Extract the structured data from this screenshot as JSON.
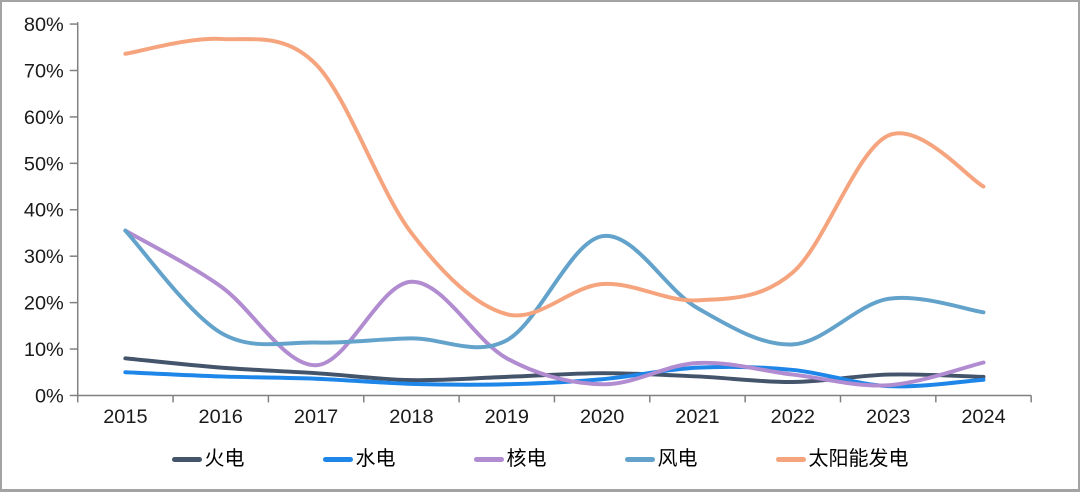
{
  "figure": {
    "background": "#ffffff",
    "border_color": "#a3a3a3",
    "axis_line_color": "#808080",
    "tick_label_color": "#1a1a1a"
  },
  "axes": {
    "y": {
      "tick_labels": [
        "0%",
        "10%",
        "20%",
        "30%",
        "40%",
        "50%",
        "60%",
        "70%",
        "80%"
      ]
    },
    "x": {
      "tick_labels": [
        "2015",
        "2016",
        "2017",
        "2018",
        "2019",
        "2020",
        "2021",
        "2022",
        "2023",
        "2024"
      ]
    }
  },
  "legend": {
    "items": [
      {
        "label": "火电",
        "color": "#44546A"
      },
      {
        "label": "水电",
        "color": "#1D86E8"
      },
      {
        "label": "核电",
        "color": "#B18CD0"
      },
      {
        "label": "风电",
        "color": "#63A3CB"
      },
      {
        "label": "太阳能发电",
        "color": "#F5A47E"
      }
    ]
  },
  "chart_data": {
    "type": "line",
    "smooth": true,
    "title": "",
    "xlabel": "",
    "ylabel": "",
    "categories": [
      2015,
      2016,
      2017,
      2018,
      2019,
      2020,
      2021,
      2022,
      2023,
      2024
    ],
    "ylim": [
      0,
      80
    ],
    "y_step": 10,
    "y_unit": "%",
    "grid": false,
    "legend_position": "bottom",
    "series": [
      {
        "name": "火电",
        "key": "thermal",
        "color": "#44546A",
        "values": [
          8,
          6,
          4.8,
          3.3,
          4,
          4.8,
          4.1,
          2.9,
          4.5,
          4
        ]
      },
      {
        "name": "水电",
        "key": "hydro",
        "color": "#1D86E8",
        "values": [
          5,
          4.1,
          3.6,
          2.5,
          2.4,
          3.5,
          6,
          5.5,
          2,
          3.4
        ]
      },
      {
        "name": "核电",
        "key": "nuclear",
        "color": "#B18CD0",
        "values": [
          35.5,
          23.5,
          6.5,
          24.5,
          8,
          2.4,
          7,
          4.5,
          2.2,
          7.1
        ]
      },
      {
        "name": "风电",
        "key": "wind",
        "color": "#63A3CB",
        "values": [
          35.5,
          13.5,
          11.4,
          12.3,
          11.9,
          34.3,
          18.8,
          11,
          20.8,
          17.9
        ]
      },
      {
        "name": "太阳能发电",
        "key": "solar",
        "color": "#F5A47E",
        "values": [
          73.6,
          76.8,
          71.3,
          35,
          17.5,
          24,
          20.5,
          26.5,
          56,
          45
        ]
      }
    ]
  }
}
